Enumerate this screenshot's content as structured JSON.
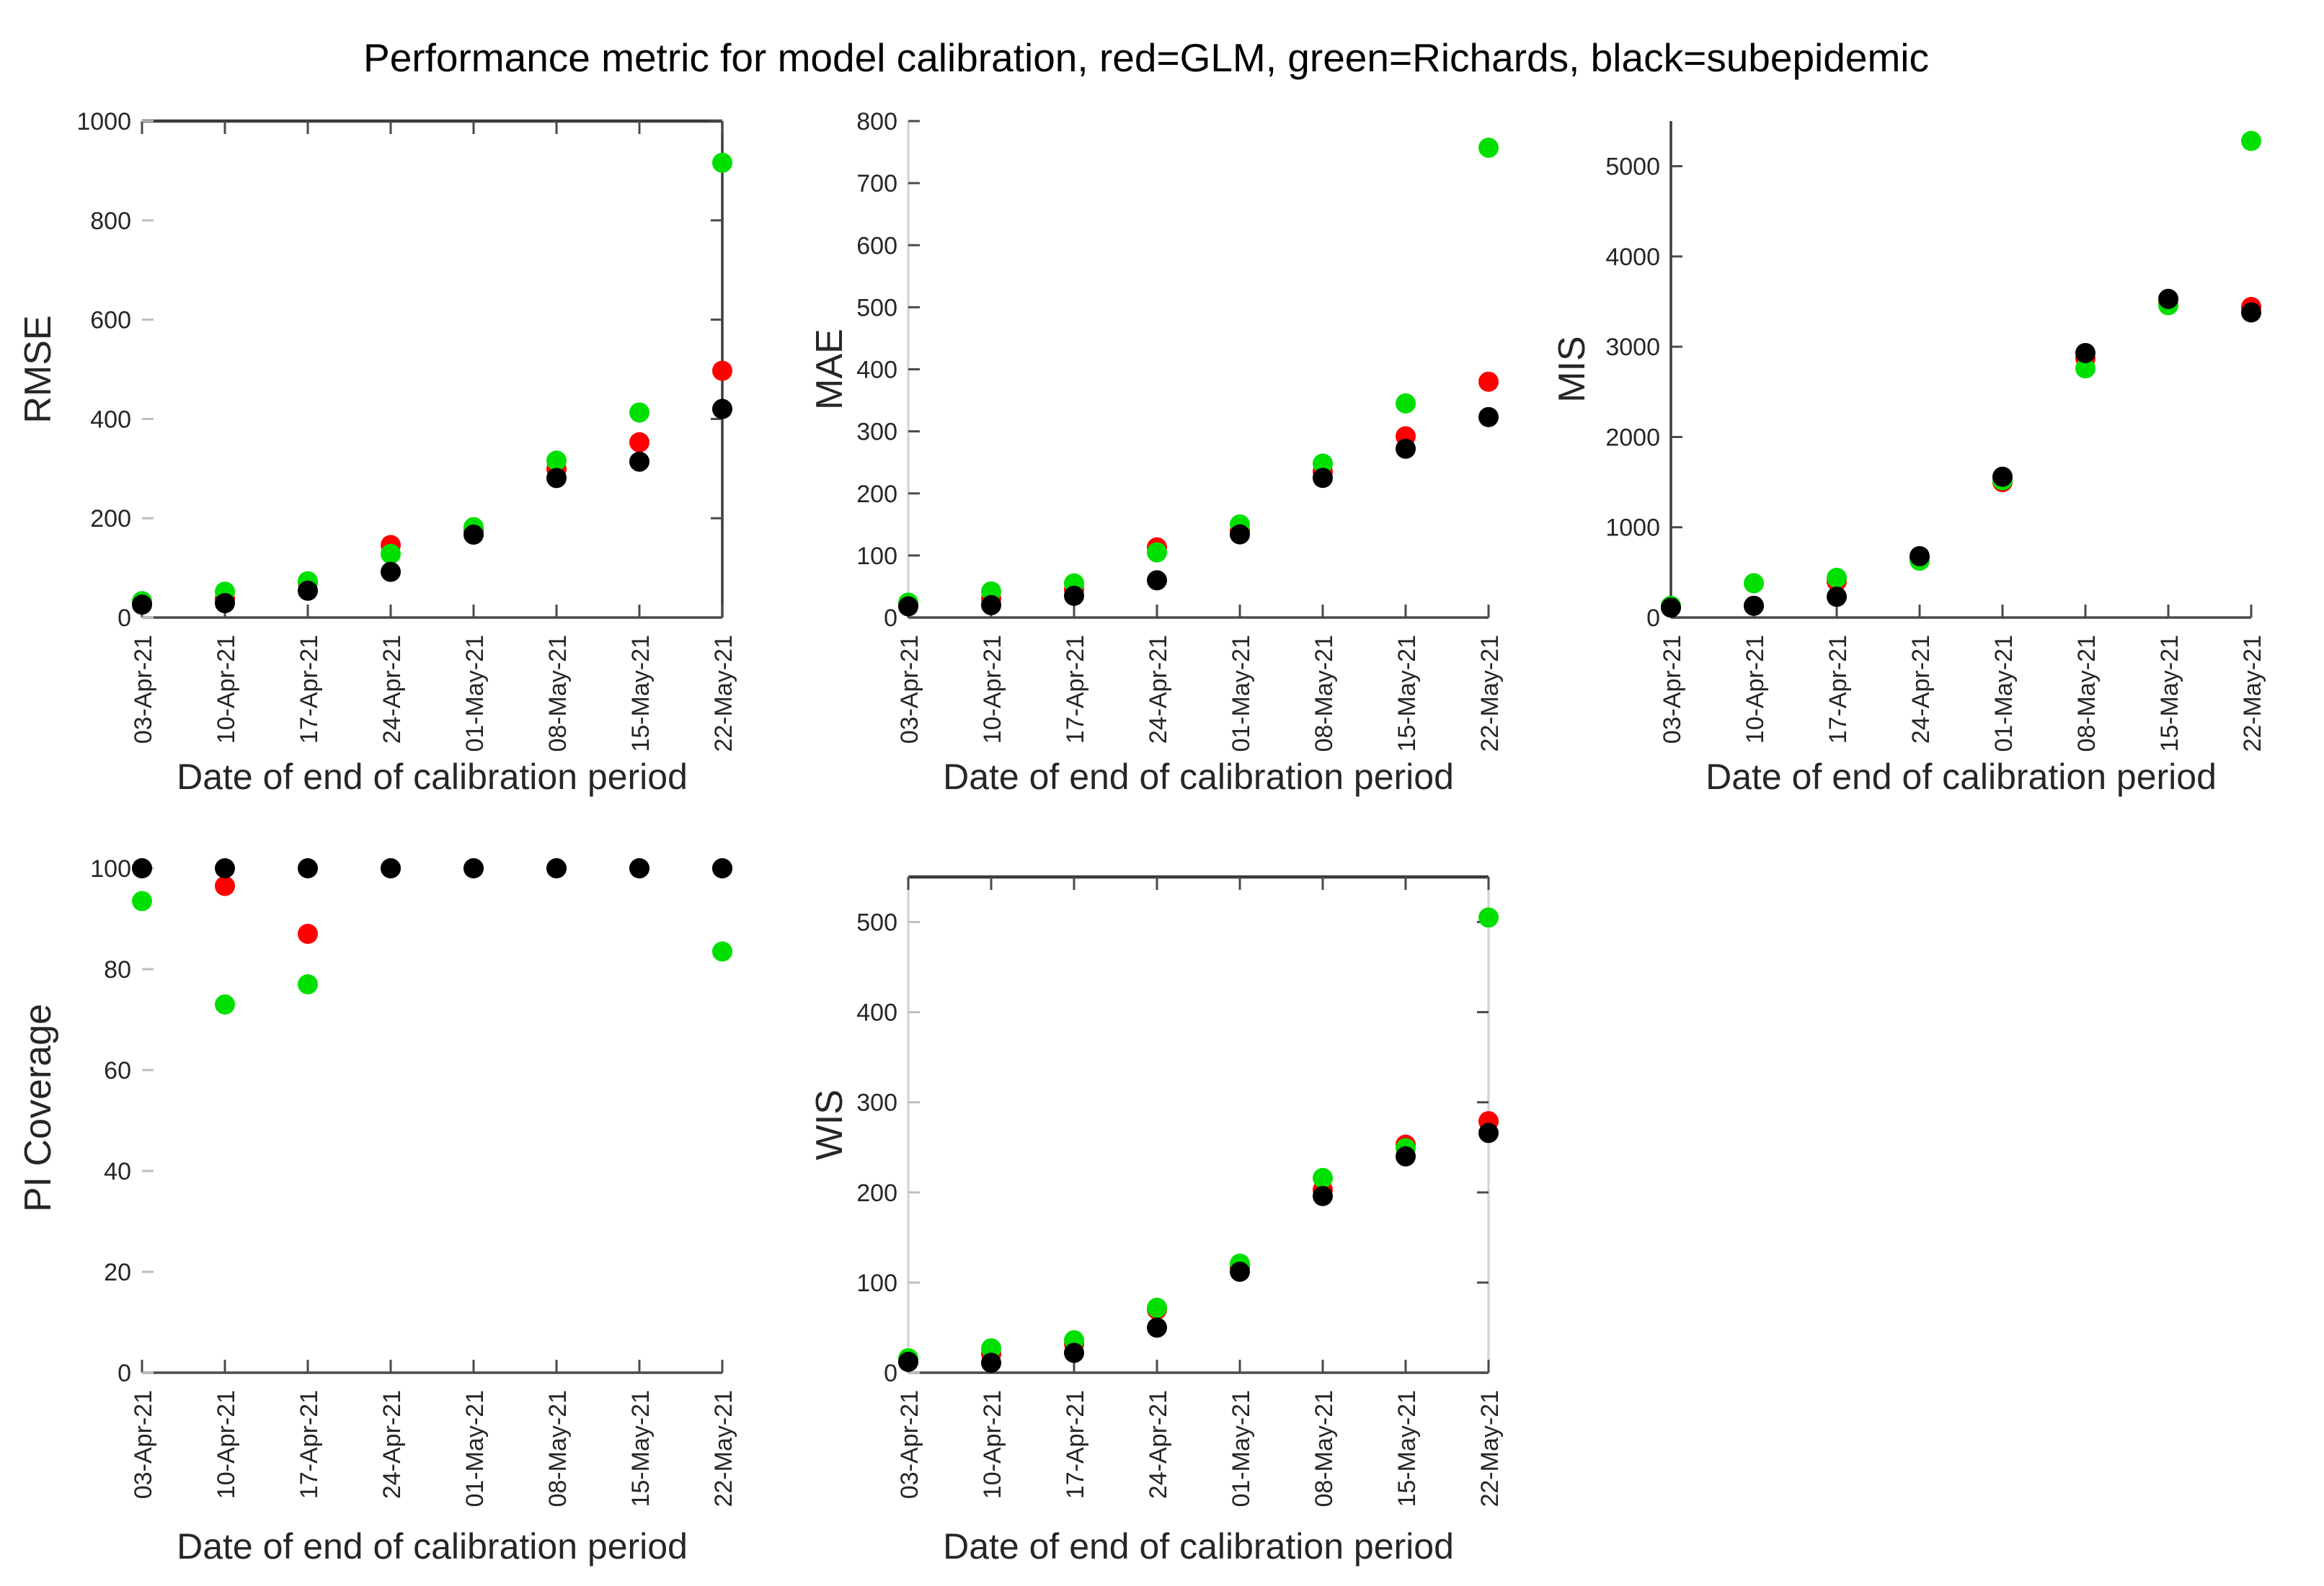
{
  "figure": {
    "title": "Performance metric for model calibration, red=GLM, green=Richards, black=subepidemic",
    "background": "#ffffff",
    "text_color": "#262626",
    "legend": [
      {
        "name": "GLM",
        "color": "#ff0000"
      },
      {
        "name": "Richards",
        "color": "#00e000"
      },
      {
        "name": "subepidemic",
        "color": "#000000"
      }
    ]
  },
  "chart_data": [
    {
      "id": "rmse",
      "type": "scatter",
      "title": "",
      "ylabel": "RMSE",
      "xlabel": "Date of end of calibration period",
      "categories": [
        "03-Apr-21",
        "10-Apr-21",
        "17-Apr-21",
        "24-Apr-21",
        "01-May-21",
        "08-May-21",
        "15-May-21",
        "22-May-21"
      ],
      "ylim": [
        0,
        1000
      ],
      "yticks": [
        0,
        200,
        400,
        600,
        800,
        1000
      ],
      "grid": false,
      "series": [
        {
          "name": "GLM",
          "color": "#ff0000",
          "values": [
            30,
            38,
            70,
            146,
            176,
            299,
            353,
            497
          ]
        },
        {
          "name": "Richards",
          "color": "#00e000",
          "values": [
            33,
            52,
            73,
            128,
            182,
            316,
            413,
            916
          ]
        },
        {
          "name": "subepidemic",
          "color": "#000000",
          "values": [
            26,
            29,
            54,
            92,
            167,
            281,
            314,
            420
          ]
        }
      ]
    },
    {
      "id": "mae",
      "type": "scatter",
      "title": "",
      "ylabel": "MAE",
      "xlabel": "Date of end of calibration period",
      "categories": [
        "03-Apr-21",
        "10-Apr-21",
        "17-Apr-21",
        "24-Apr-21",
        "01-May-21",
        "08-May-21",
        "15-May-21",
        "22-May-21"
      ],
      "ylim": [
        0,
        800
      ],
      "yticks": [
        0,
        100,
        200,
        300,
        400,
        500,
        600,
        700,
        800
      ],
      "grid": false,
      "series": [
        {
          "name": "GLM",
          "color": "#ff0000",
          "values": [
            20,
            30,
            45,
            113,
            140,
            235,
            292,
            380
          ]
        },
        {
          "name": "Richards",
          "color": "#00e000",
          "values": [
            24,
            42,
            55,
            105,
            150,
            248,
            345,
            757
          ]
        },
        {
          "name": "subepidemic",
          "color": "#000000",
          "values": [
            18,
            20,
            35,
            60,
            134,
            225,
            272,
            323
          ]
        }
      ]
    },
    {
      "id": "mis",
      "type": "scatter",
      "title": "",
      "ylabel": "MIS",
      "xlabel": "Date of end of calibration period",
      "categories": [
        "03-Apr-21",
        "10-Apr-21",
        "17-Apr-21",
        "24-Apr-21",
        "01-May-21",
        "08-May-21",
        "15-May-21",
        "22-May-21"
      ],
      "ylim": [
        0,
        5500
      ],
      "yticks": [
        0,
        1000,
        2000,
        3000,
        4000,
        5000
      ],
      "grid": false,
      "series": [
        {
          "name": "GLM",
          "color": "#ff0000",
          "values": [
            115,
            130,
            400,
            660,
            1500,
            2870,
            3470,
            3440
          ]
        },
        {
          "name": "Richards",
          "color": "#00e000",
          "values": [
            130,
            380,
            440,
            630,
            1520,
            2760,
            3460,
            5280
          ]
        },
        {
          "name": "subepidemic",
          "color": "#000000",
          "values": [
            110,
            130,
            230,
            680,
            1560,
            2930,
            3530,
            3380
          ]
        }
      ]
    },
    {
      "id": "pi_coverage",
      "type": "scatter",
      "title": "",
      "ylabel": "PI Coverage",
      "xlabel": "Date of end of calibration period",
      "categories": [
        "03-Apr-21",
        "10-Apr-21",
        "17-Apr-21",
        "24-Apr-21",
        "01-May-21",
        "08-May-21",
        "15-May-21",
        "22-May-21"
      ],
      "ylim": [
        0,
        105
      ],
      "yticks": [
        0,
        20,
        40,
        60,
        80,
        100
      ],
      "grid": false,
      "series": [
        {
          "name": "GLM",
          "color": "#ff0000",
          "values": [
            100,
            96.5,
            87,
            100,
            100,
            100,
            100,
            100
          ]
        },
        {
          "name": "Richards",
          "color": "#00e000",
          "values": [
            93.5,
            73,
            77,
            100,
            100,
            100,
            100,
            83.5
          ]
        },
        {
          "name": "subepidemic",
          "color": "#000000",
          "values": [
            100,
            100,
            100,
            100,
            100,
            100,
            100,
            100
          ]
        }
      ]
    },
    {
      "id": "wis",
      "type": "scatter",
      "title": "",
      "ylabel": "WIS",
      "xlabel": "Date of end of calibration period",
      "categories": [
        "03-Apr-21",
        "10-Apr-21",
        "17-Apr-21",
        "24-Apr-21",
        "01-May-21",
        "08-May-21",
        "15-May-21",
        "22-May-21"
      ],
      "ylim": [
        0,
        550
      ],
      "yticks": [
        0,
        100,
        200,
        300,
        400,
        500
      ],
      "grid": false,
      "series": [
        {
          "name": "GLM",
          "color": "#ff0000",
          "values": [
            14,
            21,
            32,
            70,
            117,
            203,
            253,
            279
          ]
        },
        {
          "name": "Richards",
          "color": "#00e000",
          "values": [
            16,
            27,
            36,
            72,
            121,
            216,
            249,
            505
          ]
        },
        {
          "name": "subepidemic",
          "color": "#000000",
          "values": [
            12,
            11,
            22,
            50,
            112,
            196,
            240,
            266
          ]
        }
      ]
    }
  ]
}
